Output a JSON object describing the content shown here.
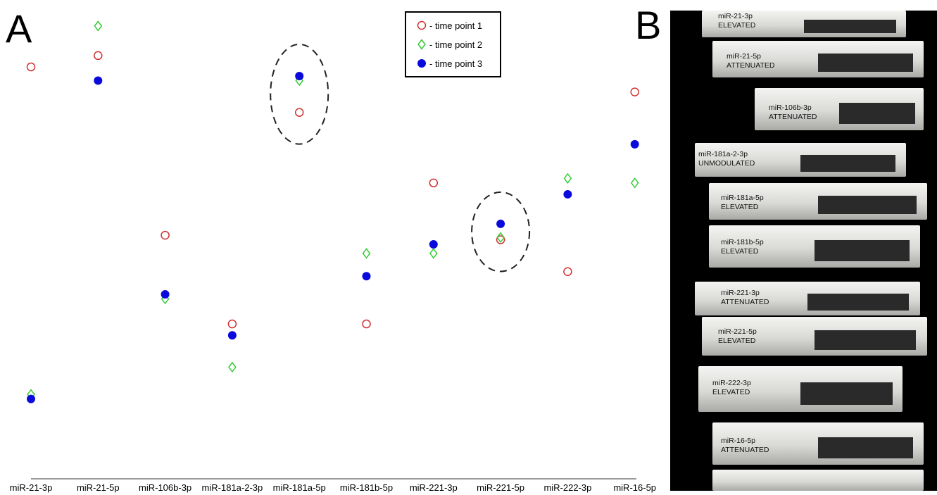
{
  "panel_a_label": "A",
  "panel_b_label": "B",
  "chart_data": {
    "type": "scatter",
    "categories": [
      "miR-21-3p",
      "miR-21-5p",
      "miR-106b-3p",
      "miR-181a-2-3p",
      "miR-181a-5p",
      "miR-181b-5p",
      "miR-221-3p",
      "miR-221-5p",
      "miR-222-3p",
      "miR-16-5p"
    ],
    "series": [
      {
        "name": "- time point 1",
        "marker": "open-circle",
        "color": "#d03030",
        "values": [
          0.89,
          0.915,
          0.52,
          0.325,
          0.79,
          0.325,
          0.635,
          0.51,
          0.44,
          0.835
        ]
      },
      {
        "name": "- time point 2",
        "marker": "open-diamond",
        "color": "#33cc33",
        "values": [
          0.17,
          0.98,
          0.38,
          0.23,
          0.86,
          0.48,
          0.48,
          0.515,
          0.645,
          0.635
        ]
      },
      {
        "name": "- time point 3",
        "marker": "filled-circle",
        "color": "#0a0adc",
        "values": [
          0.16,
          0.86,
          0.39,
          0.3,
          0.87,
          0.43,
          0.5,
          0.545,
          0.61,
          0.72
        ]
      }
    ],
    "highlighted_categories": [
      "miR-181a-5p",
      "miR-221-5p"
    ],
    "legend_position": "top-center",
    "grid": false,
    "xlabel": "",
    "ylabel": "",
    "ylim": [
      0,
      1
    ]
  },
  "panel_b": {
    "keys": [
      {
        "line1": "miR-21-3p",
        "line2": "ELEVATED"
      },
      {
        "line1": "miR-21-5p",
        "line2": "ATTENUATED"
      },
      {
        "line1": "miR-106b-3p",
        "line2": "ATTENUATED"
      },
      {
        "line1": "miR-181a-2-3p",
        "line2": "UNMODULATED"
      },
      {
        "line1": "miR-181a-5p",
        "line2": "ELEVATED"
      },
      {
        "line1": "miR-181b-5p",
        "line2": "ELEVATED"
      },
      {
        "line1": "miR-221-3p",
        "line2": "ATTENUATED"
      },
      {
        "line1": "miR-221-5p",
        "line2": "ELEVATED"
      },
      {
        "line1": "miR-222-3p",
        "line2": "ELEVATED"
      },
      {
        "line1": "miR-16-5p",
        "line2": "ATTENUATED"
      }
    ]
  }
}
